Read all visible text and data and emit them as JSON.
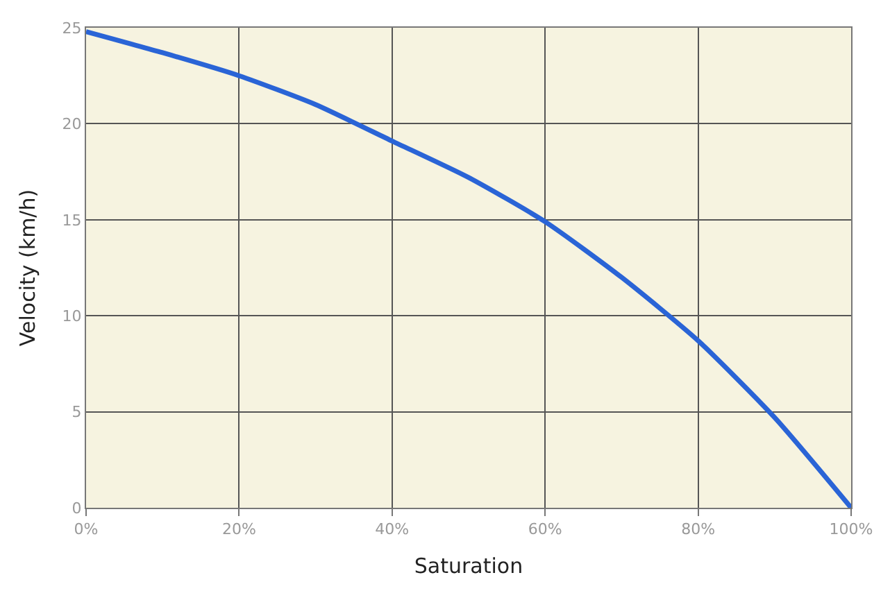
{
  "chart_data": {
    "type": "line",
    "xlabel": "Saturation",
    "ylabel": "Velocity (km/h)",
    "x": [
      0,
      10,
      20,
      30,
      40,
      50,
      60,
      70,
      80,
      90,
      100
    ],
    "series": [
      {
        "color": "#2a64d6",
        "values": [
          24.8,
          23.7,
          22.5,
          21.0,
          19.1,
          17.2,
          14.9,
          12.0,
          8.7,
          4.7,
          0
        ]
      }
    ],
    "xlim": [
      0,
      100
    ],
    "ylim": [
      0,
      25
    ],
    "xticks": [
      {
        "value": 0,
        "label": "0%"
      },
      {
        "value": 20,
        "label": "20%"
      },
      {
        "value": 40,
        "label": "40%"
      },
      {
        "value": 60,
        "label": "60%"
      },
      {
        "value": 80,
        "label": "80%"
      },
      {
        "value": 100,
        "label": "100%"
      }
    ],
    "yticks": [
      0,
      5,
      10,
      15,
      20,
      25
    ],
    "grid": true,
    "legend": false,
    "marker": "none",
    "line_style": "solid"
  }
}
